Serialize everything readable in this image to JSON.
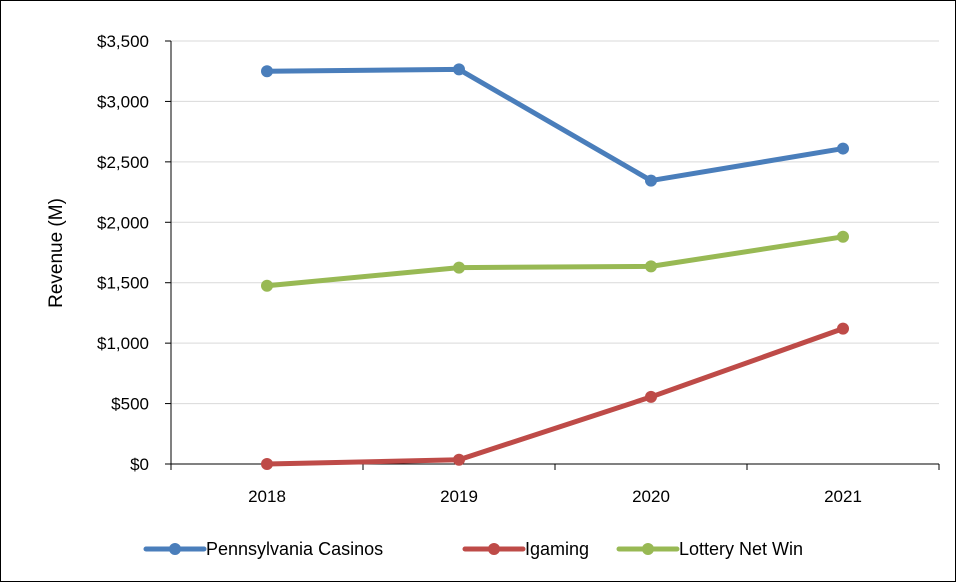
{
  "chart_data": {
    "type": "line",
    "title": "",
    "xlabel": "",
    "ylabel": "Revenue (M)",
    "categories": [
      "2018",
      "2019",
      "2020",
      "2021"
    ],
    "ylim": [
      0,
      3500
    ],
    "yticks": [
      "$0",
      "$500",
      "$1,000",
      "$1,500",
      "$2,000",
      "$2,500",
      "$3,000",
      "$3,500"
    ],
    "grid": true,
    "legend_position": "bottom",
    "series": [
      {
        "name": "Pennsylvania Casinos",
        "color": "#4a7ebb",
        "values": [
          3250,
          3265,
          2345,
          2610
        ]
      },
      {
        "name": "Igaming",
        "color": "#be4b48",
        "values": [
          0,
          35,
          555,
          1120
        ]
      },
      {
        "name": "Lottery Net Win",
        "color": "#98b954",
        "values": [
          1475,
          1625,
          1635,
          1880
        ]
      }
    ]
  }
}
